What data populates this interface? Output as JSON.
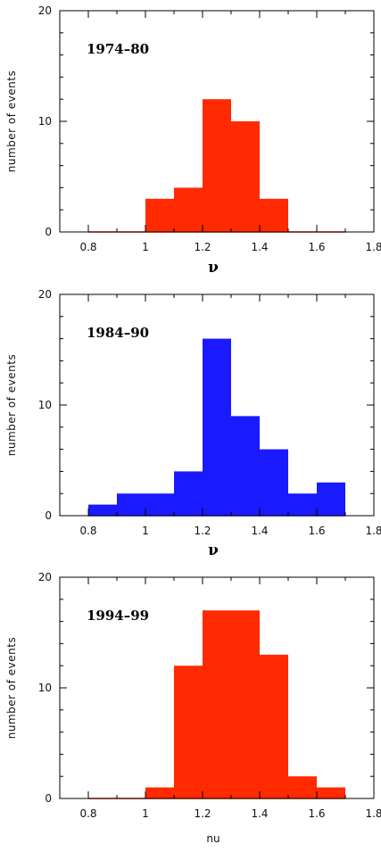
{
  "chart_data": [
    {
      "type": "bar",
      "title": "",
      "annotation": "1974–80",
      "xlabel": "ν",
      "ylabel": "number of events",
      "xlim": [
        0.7,
        1.8
      ],
      "ylim": [
        0,
        20
      ],
      "xticks": [
        "0.8",
        "1",
        "1.2",
        "1.4",
        "1.6",
        "1.8"
      ],
      "yticks": [
        "0",
        "10",
        "20"
      ],
      "bin_edges": [
        0.8,
        0.9,
        1.0,
        1.1,
        1.2,
        1.3,
        1.4,
        1.5,
        1.6,
        1.7
      ],
      "values": [
        0,
        0,
        3,
        4,
        12,
        10,
        3,
        0,
        0
      ],
      "color": "#ff2a00"
    },
    {
      "type": "bar",
      "title": "",
      "annotation": "1984–90",
      "xlabel": "ν",
      "ylabel": "number of events",
      "xlim": [
        0.7,
        1.8
      ],
      "ylim": [
        0,
        20
      ],
      "xticks": [
        "0.8",
        "1",
        "1.2",
        "1.4",
        "1.6",
        "1.8"
      ],
      "yticks": [
        "0",
        "10",
        "20"
      ],
      "bin_edges": [
        0.8,
        0.9,
        1.0,
        1.1,
        1.2,
        1.3,
        1.4,
        1.5,
        1.6,
        1.7
      ],
      "values": [
        1,
        2,
        2,
        4,
        16,
        9,
        6,
        2,
        3
      ],
      "color": "#1a1aff"
    },
    {
      "type": "bar",
      "title": "",
      "annotation": "1994–99",
      "xlabel": "nu",
      "ylabel": "number of events",
      "xlim": [
        0.7,
        1.8
      ],
      "ylim": [
        0,
        20
      ],
      "xticks": [
        "0.8",
        "1",
        "1.2",
        "1.4",
        "1.6",
        "1.8"
      ],
      "yticks": [
        "0",
        "10",
        "20"
      ],
      "bin_edges": [
        0.8,
        0.9,
        1.0,
        1.1,
        1.2,
        1.3,
        1.4,
        1.5,
        1.6,
        1.7
      ],
      "values": [
        0,
        0,
        1,
        12,
        17,
        17,
        13,
        2,
        1
      ],
      "color": "#ff2a00"
    }
  ]
}
